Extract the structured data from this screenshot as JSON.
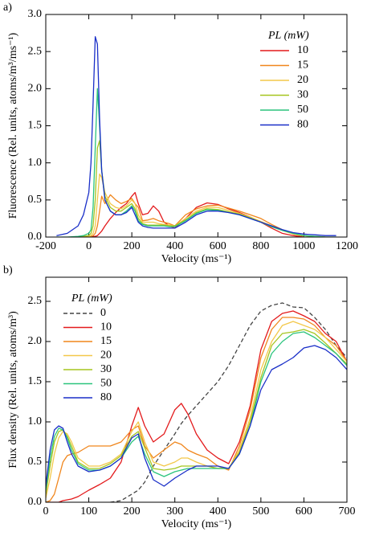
{
  "chart_data": [
    {
      "type": "line",
      "panel_label": "a)",
      "xlabel": "Velocity (ms⁻¹)",
      "ylabel": "Fluorescence (Rel. units, atoms/m³/ms⁻¹)",
      "legend_title": "PL (mW)",
      "legend": "upper right",
      "xlim": [
        -200,
        1200
      ],
      "xticks": [
        -200,
        0,
        200,
        400,
        600,
        800,
        1000,
        1200
      ],
      "ylim": [
        0,
        3
      ],
      "yticks": [
        {
          "value": 0,
          "label": "0.0"
        },
        0.5,
        {
          "value": 1,
          "label": "1.0"
        },
        1.5,
        {
          "value": 2,
          "label": "2.0"
        },
        2.5,
        {
          "value": 3,
          "label": "3.0"
        }
      ],
      "x": [
        -150,
        -100,
        -50,
        -25,
        0,
        10,
        20,
        30,
        40,
        50,
        60,
        75,
        100,
        125,
        150,
        175,
        200,
        215,
        230,
        250,
        275,
        300,
        325,
        350,
        375,
        400,
        450,
        500,
        550,
        600,
        650,
        700,
        750,
        800,
        850,
        900,
        950,
        1000,
        1050,
        1100,
        1150
      ],
      "series": [
        {
          "name": "10",
          "color": "#e31a1c",
          "values": [
            null,
            null,
            null,
            null,
            0,
            0,
            0.01,
            0.01,
            0.02,
            0.05,
            0.08,
            0.15,
            0.25,
            0.33,
            0.4,
            0.45,
            0.55,
            0.6,
            0.45,
            0.3,
            0.32,
            0.42,
            0.35,
            0.2,
            0.15,
            0.12,
            0.25,
            0.4,
            0.46,
            0.44,
            0.38,
            0.33,
            0.27,
            0.2,
            0.12,
            0.05,
            0.02,
            0,
            null,
            null,
            null
          ]
        },
        {
          "name": "15",
          "color": "#f0861c",
          "values": [
            null,
            null,
            null,
            null,
            0,
            0.01,
            0.02,
            0.05,
            0.15,
            0.35,
            0.55,
            0.45,
            0.57,
            0.5,
            0.45,
            0.48,
            0.52,
            0.45,
            0.4,
            0.22,
            0.23,
            0.25,
            0.22,
            0.2,
            0.18,
            0.15,
            0.3,
            0.38,
            0.42,
            0.43,
            0.39,
            0.35,
            0.3,
            0.25,
            0.17,
            0.1,
            0.04,
            0.01,
            null,
            null,
            null
          ]
        },
        {
          "name": "20",
          "color": "#f3c84a",
          "values": [
            null,
            null,
            null,
            0,
            0.01,
            0.02,
            0.05,
            0.15,
            0.5,
            0.85,
            0.8,
            0.6,
            0.45,
            0.4,
            0.38,
            0.42,
            0.5,
            0.45,
            0.3,
            0.2,
            0.2,
            0.2,
            0.18,
            0.17,
            0.16,
            0.15,
            0.25,
            0.35,
            0.4,
            0.4,
            0.36,
            0.32,
            0.27,
            0.21,
            0.15,
            0.09,
            0.04,
            0.02,
            0,
            null,
            null
          ]
        },
        {
          "name": "30",
          "color": "#a5c51f",
          "values": [
            null,
            null,
            0,
            0.01,
            0.02,
            0.05,
            0.15,
            0.5,
            1.2,
            1.3,
            0.9,
            0.55,
            0.4,
            0.35,
            0.35,
            0.4,
            0.45,
            0.38,
            0.25,
            0.18,
            0.16,
            0.16,
            0.16,
            0.16,
            0.15,
            0.15,
            0.23,
            0.33,
            0.38,
            0.37,
            0.34,
            0.31,
            0.26,
            0.2,
            0.14,
            0.09,
            0.05,
            0.02,
            0.01,
            0,
            null
          ]
        },
        {
          "name": "50",
          "color": "#2bc47d",
          "values": [
            0,
            0,
            0.01,
            0.02,
            0.05,
            0.1,
            0.4,
            1.2,
            2.0,
            1.5,
            0.9,
            0.5,
            0.35,
            0.3,
            0.3,
            0.35,
            0.42,
            0.35,
            0.22,
            0.17,
            0.15,
            0.15,
            0.15,
            0.15,
            0.14,
            0.14,
            0.22,
            0.32,
            0.37,
            0.36,
            0.33,
            0.3,
            0.25,
            0.2,
            0.14,
            0.09,
            0.05,
            0.02,
            0.01,
            0,
            0
          ]
        },
        {
          "name": "80",
          "color": "#1a2fc8",
          "values": [
            0.02,
            0.05,
            0.15,
            0.3,
            0.6,
            1.0,
            1.8,
            2.7,
            2.6,
            1.6,
            0.9,
            0.5,
            0.35,
            0.3,
            0.3,
            0.33,
            0.4,
            0.3,
            0.2,
            0.15,
            0.13,
            0.12,
            0.12,
            0.12,
            0.12,
            0.12,
            0.2,
            0.3,
            0.35,
            0.35,
            0.33,
            0.3,
            0.25,
            0.2,
            0.15,
            0.1,
            0.06,
            0.04,
            0.03,
            0.02,
            0.02
          ]
        }
      ]
    },
    {
      "type": "line",
      "panel_label": "b)",
      "xlabel": "Velocity (ms⁻¹)",
      "ylabel": "Flux density (Rel. units, atoms/m³)",
      "legend_title": "PL (mW)",
      "legend": "upper left",
      "xlim": [
        0,
        700
      ],
      "xticks": [
        0,
        100,
        200,
        300,
        400,
        500,
        600,
        700
      ],
      "ylim": [
        0,
        2.8
      ],
      "yticks": [
        {
          "value": 0,
          "label": "0.0"
        },
        0.5,
        {
          "value": 1,
          "label": "1.0"
        },
        1.5,
        {
          "value": 2,
          "label": "2.0"
        },
        2.5
      ],
      "x": [
        0,
        10,
        20,
        30,
        40,
        50,
        60,
        75,
        100,
        125,
        150,
        175,
        200,
        215,
        230,
        250,
        275,
        300,
        315,
        330,
        350,
        375,
        400,
        425,
        450,
        475,
        500,
        525,
        550,
        575,
        600,
        625,
        650,
        675,
        700
      ],
      "series": [
        {
          "name": "0",
          "color": "#444444",
          "linestyle": "dashed",
          "values": [
            null,
            null,
            null,
            null,
            null,
            null,
            null,
            null,
            null,
            null,
            0,
            0.02,
            0.1,
            0.15,
            0.25,
            0.45,
            0.65,
            0.85,
            0.98,
            1.08,
            1.2,
            1.35,
            1.5,
            1.7,
            1.95,
            2.2,
            2.38,
            2.45,
            2.48,
            2.43,
            2.42,
            2.3,
            2.15,
            1.95,
            1.8
          ]
        },
        {
          "name": "10",
          "color": "#e31a1c",
          "values": [
            0,
            0,
            0,
            0,
            0.02,
            0.03,
            0.04,
            0.07,
            0.15,
            0.22,
            0.3,
            0.5,
            0.95,
            1.18,
            0.95,
            0.75,
            0.85,
            1.15,
            1.23,
            1.1,
            0.85,
            0.65,
            0.55,
            0.48,
            0.75,
            1.2,
            1.9,
            2.25,
            2.35,
            2.38,
            2.32,
            2.25,
            2.1,
            2.0,
            1.75
          ]
        },
        {
          "name": "15",
          "color": "#f0861c",
          "values": [
            0,
            0.02,
            0.1,
            0.3,
            0.5,
            0.58,
            0.6,
            0.62,
            0.7,
            0.7,
            0.7,
            0.75,
            0.9,
            0.95,
            0.7,
            0.55,
            0.65,
            0.75,
            0.72,
            0.65,
            0.6,
            0.55,
            0.45,
            0.4,
            0.7,
            1.15,
            1.8,
            2.15,
            2.3,
            2.3,
            2.28,
            2.2,
            2.05,
            1.95,
            1.75
          ]
        },
        {
          "name": "20",
          "color": "#f3c84a",
          "values": [
            0.05,
            0.3,
            0.6,
            0.8,
            0.88,
            0.85,
            0.75,
            0.55,
            0.45,
            0.45,
            0.5,
            0.6,
            0.88,
            1.0,
            0.75,
            0.5,
            0.45,
            0.5,
            0.55,
            0.55,
            0.5,
            0.45,
            0.42,
            0.42,
            0.65,
            1.05,
            1.65,
            2.0,
            2.2,
            2.25,
            2.2,
            2.15,
            2.05,
            1.9,
            1.75
          ]
        },
        {
          "name": "30",
          "color": "#a5c51f",
          "values": [
            0.1,
            0.45,
            0.75,
            0.88,
            0.9,
            0.82,
            0.7,
            0.5,
            0.42,
            0.42,
            0.48,
            0.58,
            0.82,
            0.88,
            0.68,
            0.42,
            0.4,
            0.42,
            0.45,
            0.45,
            0.45,
            0.45,
            0.42,
            0.42,
            0.62,
            1.0,
            1.55,
            1.95,
            2.1,
            2.12,
            2.15,
            2.1,
            1.98,
            1.85,
            1.72
          ]
        },
        {
          "name": "50",
          "color": "#2bc47d",
          "values": [
            0.15,
            0.55,
            0.82,
            0.92,
            0.9,
            0.8,
            0.65,
            0.48,
            0.4,
            0.4,
            0.45,
            0.55,
            0.75,
            0.82,
            0.6,
            0.38,
            0.32,
            0.38,
            0.4,
            0.42,
            0.42,
            0.42,
            0.42,
            0.42,
            0.6,
            0.95,
            1.5,
            1.85,
            2.0,
            2.1,
            2.12,
            2.05,
            1.95,
            1.85,
            1.7
          ]
        },
        {
          "name": "80",
          "color": "#1a2fc8",
          "values": [
            0.2,
            0.65,
            0.9,
            0.95,
            0.92,
            0.75,
            0.6,
            0.45,
            0.38,
            0.4,
            0.45,
            0.55,
            0.8,
            0.85,
            0.55,
            0.28,
            0.2,
            0.3,
            0.35,
            0.4,
            0.45,
            0.45,
            0.45,
            0.42,
            0.6,
            0.95,
            1.4,
            1.65,
            1.72,
            1.8,
            1.92,
            1.95,
            1.9,
            1.8,
            1.65
          ]
        }
      ]
    }
  ]
}
